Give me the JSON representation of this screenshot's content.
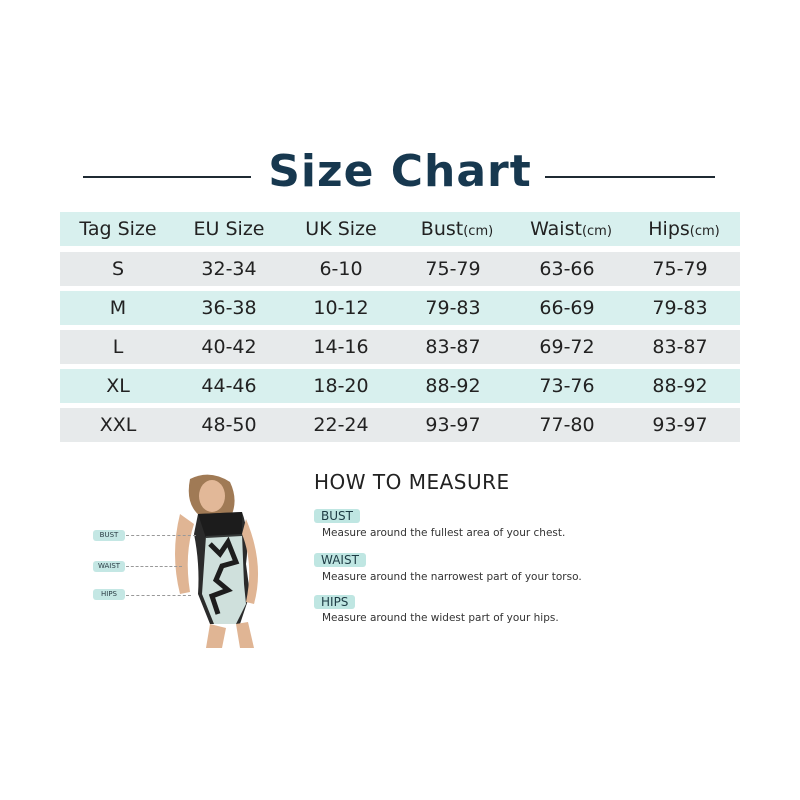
{
  "title": "Size Chart",
  "table": {
    "headers": [
      {
        "label": "Tag Size",
        "unit": ""
      },
      {
        "label": "EU Size",
        "unit": ""
      },
      {
        "label": "UK Size",
        "unit": ""
      },
      {
        "label": "Bust",
        "unit": "(cm)"
      },
      {
        "label": "Waist",
        "unit": "(cm)"
      },
      {
        "label": "Hips",
        "unit": "(cm)"
      }
    ],
    "rows": [
      [
        "S",
        "32-34",
        "6-10",
        "75-79",
        "63-66",
        "75-79"
      ],
      [
        "M",
        "36-38",
        "10-12",
        "79-83",
        "66-69",
        "79-83"
      ],
      [
        "L",
        "40-42",
        "14-16",
        "83-87",
        "69-72",
        "83-87"
      ],
      [
        "XL",
        "44-46",
        "18-20",
        "88-92",
        "73-76",
        "88-92"
      ],
      [
        "XXL",
        "48-50",
        "22-24",
        "93-97",
        "77-80",
        "93-97"
      ]
    ]
  },
  "measure": {
    "heading": "HOW TO MEASURE",
    "items": [
      {
        "tag": "BUST",
        "desc": "Measure around the fullest area of your chest."
      },
      {
        "tag": "WAIST",
        "desc": "Measure around the narrowest part of your torso."
      },
      {
        "tag": "HIPS",
        "desc": "Measure around the widest part of your hips."
      }
    ]
  },
  "colors": {
    "title": "#17384f",
    "teal_row": "#d8f0ee",
    "grey_row": "#e7eaeb",
    "tag": "#bfe6e2"
  }
}
